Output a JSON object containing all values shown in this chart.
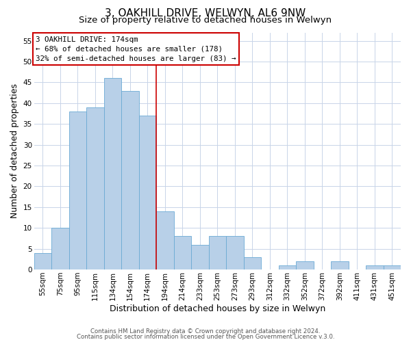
{
  "title": "3, OAKHILL DRIVE, WELWYN, AL6 9NW",
  "subtitle": "Size of property relative to detached houses in Welwyn",
  "xlabel": "Distribution of detached houses by size in Welwyn",
  "ylabel": "Number of detached properties",
  "footer1": "Contains HM Land Registry data © Crown copyright and database right 2024.",
  "footer2": "Contains public sector information licensed under the Open Government Licence v.3.0.",
  "bar_color": "#b8d0e8",
  "bar_edge_color": "#6aaad4",
  "vline_color": "#cc0000",
  "vline_x": 6.5,
  "annotation_line1": "3 OAKHILL DRIVE: 174sqm",
  "annotation_line2": "← 68% of detached houses are smaller (178)",
  "annotation_line3": "32% of semi-detached houses are larger (83) →",
  "annotation_box_color": "#cc0000",
  "categories": [
    "55sqm",
    "75sqm",
    "95sqm",
    "115sqm",
    "134sqm",
    "154sqm",
    "174sqm",
    "194sqm",
    "214sqm",
    "233sqm",
    "253sqm",
    "273sqm",
    "293sqm",
    "312sqm",
    "332sqm",
    "352sqm",
    "372sqm",
    "392sqm",
    "411sqm",
    "431sqm",
    "451sqm"
  ],
  "values": [
    4,
    10,
    38,
    39,
    46,
    43,
    37,
    14,
    8,
    6,
    8,
    8,
    3,
    0,
    1,
    2,
    0,
    2,
    0,
    1,
    1
  ],
  "ylim": [
    0,
    57
  ],
  "yticks": [
    0,
    5,
    10,
    15,
    20,
    25,
    30,
    35,
    40,
    45,
    50,
    55
  ],
  "background_color": "#ffffff",
  "grid_color": "#c8d4e8",
  "title_fontsize": 11,
  "subtitle_fontsize": 9.5,
  "axis_label_fontsize": 9,
  "tick_fontsize": 7.5,
  "footer_fontsize": 6.2
}
